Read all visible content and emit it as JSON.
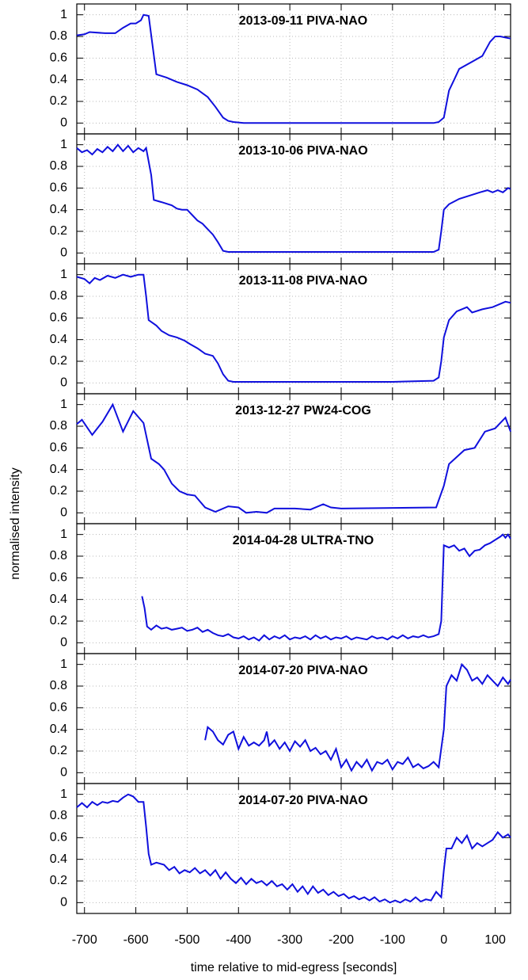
{
  "chart_data": [
    {
      "type": "line",
      "title": "2013-09-11 PIVA-NAO",
      "color": "#1010dd",
      "xlim": [
        -715,
        130
      ],
      "ylim": [
        -0.1,
        1.1
      ],
      "yticks": [
        0,
        0.2,
        0.4,
        0.6,
        0.8,
        1
      ],
      "xticks": [
        -700,
        -600,
        -500,
        -400,
        -300,
        -200,
        -100,
        0,
        100
      ],
      "grid": true,
      "x": [
        -715,
        -700,
        -690,
        -660,
        -640,
        -625,
        -610,
        -600,
        -590,
        -585,
        -575,
        -560,
        -540,
        -520,
        -500,
        -480,
        -460,
        -445,
        -430,
        -420,
        -410,
        -390,
        -300,
        -200,
        -100,
        -20,
        -10,
        0,
        10,
        20,
        30,
        60,
        75,
        90,
        100,
        110,
        120,
        130
      ],
      "values": [
        0.81,
        0.82,
        0.84,
        0.83,
        0.83,
        0.88,
        0.92,
        0.92,
        0.95,
        1.0,
        0.99,
        0.45,
        0.42,
        0.38,
        0.35,
        0.31,
        0.24,
        0.15,
        0.05,
        0.02,
        0.01,
        0,
        0,
        0,
        0,
        0,
        0.01,
        0.05,
        0.3,
        0.4,
        0.5,
        0.58,
        0.62,
        0.75,
        0.8,
        0.8,
        0.79,
        0.78
      ]
    },
    {
      "type": "line",
      "title": "2013-10-06 PIVA-NAO",
      "color": "#1010dd",
      "xlim": [
        -715,
        130
      ],
      "ylim": [
        -0.1,
        1.1
      ],
      "yticks": [
        0,
        0.2,
        0.4,
        0.6,
        0.8,
        1
      ],
      "xticks": [
        -700,
        -600,
        -500,
        -400,
        -300,
        -200,
        -100,
        0,
        100
      ],
      "grid": true,
      "x": [
        -715,
        -705,
        -695,
        -685,
        -675,
        -665,
        -655,
        -645,
        -635,
        -625,
        -615,
        -605,
        -595,
        -585,
        -580,
        -570,
        -565,
        -550,
        -530,
        -520,
        -510,
        -500,
        -490,
        -480,
        -470,
        -460,
        -450,
        -440,
        -430,
        -420,
        -400,
        -300,
        -200,
        -100,
        -20,
        -10,
        -5,
        0,
        10,
        30,
        50,
        70,
        85,
        95,
        105,
        115,
        125,
        130
      ],
      "values": [
        0.97,
        0.93,
        0.95,
        0.91,
        0.96,
        0.93,
        0.98,
        0.94,
        1.0,
        0.94,
        0.99,
        0.93,
        0.97,
        0.94,
        0.97,
        0.72,
        0.49,
        0.47,
        0.44,
        0.41,
        0.4,
        0.4,
        0.35,
        0.3,
        0.27,
        0.22,
        0.17,
        0.1,
        0.02,
        0.01,
        0.01,
        0.01,
        0.01,
        0.01,
        0.01,
        0.03,
        0.2,
        0.4,
        0.45,
        0.5,
        0.53,
        0.56,
        0.58,
        0.56,
        0.58,
        0.56,
        0.6,
        0.59
      ]
    },
    {
      "type": "line",
      "title": "2013-11-08 PIVA-NAO",
      "color": "#1010dd",
      "xlim": [
        -715,
        130
      ],
      "ylim": [
        -0.1,
        1.1
      ],
      "yticks": [
        0,
        0.2,
        0.4,
        0.6,
        0.8,
        1
      ],
      "xticks": [
        -700,
        -600,
        -500,
        -400,
        -300,
        -200,
        -100,
        0,
        100
      ],
      "grid": true,
      "x": [
        -715,
        -700,
        -690,
        -680,
        -670,
        -655,
        -640,
        -625,
        -610,
        -595,
        -585,
        -580,
        -575,
        -560,
        -550,
        -535,
        -520,
        -505,
        -495,
        -480,
        -465,
        -450,
        -440,
        -430,
        -420,
        -410,
        -300,
        -200,
        -100,
        -20,
        -10,
        -5,
        0,
        10,
        25,
        45,
        55,
        75,
        95,
        110,
        120,
        130
      ],
      "values": [
        0.98,
        0.96,
        0.92,
        0.97,
        0.95,
        0.99,
        0.97,
        1.0,
        0.98,
        1.0,
        1.0,
        0.8,
        0.58,
        0.53,
        0.48,
        0.44,
        0.42,
        0.39,
        0.36,
        0.32,
        0.27,
        0.25,
        0.18,
        0.08,
        0.02,
        0.01,
        0.01,
        0.01,
        0.01,
        0.02,
        0.05,
        0.2,
        0.42,
        0.58,
        0.66,
        0.7,
        0.65,
        0.68,
        0.7,
        0.73,
        0.75,
        0.74
      ]
    },
    {
      "type": "line",
      "title": "2013-12-27 PW24-COG",
      "ylabel": "normalised intensity",
      "color": "#1010dd",
      "xlim": [
        -715,
        130
      ],
      "ylim": [
        -0.1,
        1.1
      ],
      "yticks": [
        0,
        0.2,
        0.4,
        0.6,
        0.8,
        1
      ],
      "xticks": [
        -700,
        -600,
        -500,
        -400,
        -300,
        -200,
        -100,
        0,
        100
      ],
      "grid": true,
      "x": [
        -715,
        -705,
        -685,
        -665,
        -645,
        -625,
        -605,
        -585,
        -570,
        -555,
        -545,
        -530,
        -515,
        -500,
        -485,
        -465,
        -445,
        -420,
        -400,
        -385,
        -365,
        -345,
        -330,
        -290,
        -260,
        -235,
        -220,
        -200,
        -15,
        0,
        10,
        40,
        60,
        80,
        100,
        120,
        130
      ],
      "values": [
        0.82,
        0.86,
        0.72,
        0.84,
        1.0,
        0.75,
        0.94,
        0.83,
        0.5,
        0.45,
        0.4,
        0.27,
        0.2,
        0.17,
        0.16,
        0.05,
        0.01,
        0.06,
        0.05,
        0.0,
        0.01,
        0.0,
        0.04,
        0.04,
        0.03,
        0.08,
        0.05,
        0.04,
        0.05,
        0.25,
        0.45,
        0.58,
        0.6,
        0.75,
        0.78,
        0.88,
        0.75
      ]
    },
    {
      "type": "line",
      "title": "2014-04-28 ULTRA-TNO",
      "color": "#1010dd",
      "xlim": [
        -715,
        130
      ],
      "ylim": [
        -0.1,
        1.1
      ],
      "yticks": [
        0,
        0.2,
        0.4,
        0.6,
        0.8,
        1
      ],
      "xticks": [
        -700,
        -600,
        -500,
        -400,
        -300,
        -200,
        -100,
        0,
        100
      ],
      "grid": true,
      "x": [
        -588,
        -583,
        -578,
        -570,
        -560,
        -550,
        -540,
        -530,
        -520,
        -510,
        -500,
        -490,
        -480,
        -470,
        -460,
        -450,
        -440,
        -430,
        -420,
        -410,
        -400,
        -390,
        -380,
        -370,
        -360,
        -350,
        -340,
        -330,
        -320,
        -310,
        -300,
        -290,
        -280,
        -270,
        -260,
        -250,
        -240,
        -230,
        -220,
        -210,
        -200,
        -190,
        -180,
        -170,
        -160,
        -150,
        -140,
        -130,
        -120,
        -110,
        -100,
        -90,
        -80,
        -70,
        -60,
        -50,
        -40,
        -30,
        -20,
        -10,
        -5,
        0,
        10,
        20,
        30,
        40,
        50,
        60,
        70,
        80,
        90,
        100,
        110,
        115,
        120,
        125,
        130
      ],
      "values": [
        0.43,
        0.32,
        0.15,
        0.12,
        0.16,
        0.13,
        0.14,
        0.12,
        0.13,
        0.14,
        0.11,
        0.12,
        0.14,
        0.1,
        0.12,
        0.09,
        0.07,
        0.06,
        0.08,
        0.05,
        0.04,
        0.06,
        0.03,
        0.05,
        0.02,
        0.07,
        0.03,
        0.06,
        0.04,
        0.07,
        0.03,
        0.05,
        0.04,
        0.06,
        0.03,
        0.07,
        0.04,
        0.06,
        0.03,
        0.05,
        0.04,
        0.06,
        0.03,
        0.05,
        0.04,
        0.03,
        0.06,
        0.04,
        0.05,
        0.03,
        0.06,
        0.04,
        0.07,
        0.04,
        0.06,
        0.05,
        0.07,
        0.05,
        0.06,
        0.08,
        0.2,
        0.9,
        0.88,
        0.9,
        0.85,
        0.87,
        0.8,
        0.85,
        0.86,
        0.9,
        0.92,
        0.95,
        0.98,
        1.0,
        0.97,
        1.0,
        0.96
      ]
    },
    {
      "type": "line",
      "title": "2014-07-20 PIVA-NAO",
      "color": "#1010dd",
      "xlim": [
        -715,
        130
      ],
      "ylim": [
        -0.1,
        1.1
      ],
      "yticks": [
        0,
        0.2,
        0.4,
        0.6,
        0.8,
        1
      ],
      "xticks": [
        -700,
        -600,
        -500,
        -400,
        -300,
        -200,
        -100,
        0,
        100
      ],
      "grid": true,
      "x": [
        -465,
        -460,
        -450,
        -440,
        -430,
        -420,
        -410,
        -400,
        -390,
        -380,
        -370,
        -360,
        -350,
        -345,
        -340,
        -330,
        -320,
        -310,
        -300,
        -290,
        -280,
        -270,
        -260,
        -250,
        -240,
        -230,
        -220,
        -210,
        -200,
        -190,
        -180,
        -170,
        -160,
        -150,
        -140,
        -130,
        -120,
        -110,
        -100,
        -90,
        -80,
        -70,
        -60,
        -50,
        -40,
        -30,
        -20,
        -10,
        0,
        5,
        15,
        25,
        35,
        45,
        55,
        65,
        75,
        85,
        95,
        105,
        115,
        125,
        130
      ],
      "values": [
        0.3,
        0.42,
        0.38,
        0.3,
        0.26,
        0.35,
        0.38,
        0.22,
        0.33,
        0.25,
        0.28,
        0.25,
        0.3,
        0.38,
        0.25,
        0.3,
        0.22,
        0.28,
        0.2,
        0.29,
        0.24,
        0.3,
        0.2,
        0.23,
        0.17,
        0.2,
        0.12,
        0.22,
        0.05,
        0.12,
        0.02,
        0.1,
        0.05,
        0.12,
        0.02,
        0.1,
        0.08,
        0.12,
        0.03,
        0.1,
        0.08,
        0.14,
        0.05,
        0.08,
        0.04,
        0.06,
        0.1,
        0.05,
        0.4,
        0.8,
        0.9,
        0.85,
        1.0,
        0.95,
        0.85,
        0.88,
        0.82,
        0.9,
        0.85,
        0.8,
        0.88,
        0.82,
        0.86
      ]
    },
    {
      "type": "line",
      "title": "2014-07-20 PIVA-NAO",
      "xlabel": "time relative to mid-egress [seconds]",
      "color": "#1010dd",
      "xlim": [
        -715,
        130
      ],
      "ylim": [
        -0.1,
        1.1
      ],
      "yticks": [
        0,
        0.2,
        0.4,
        0.6,
        0.8,
        1
      ],
      "xticks": [
        -700,
        -600,
        -500,
        -400,
        -300,
        -200,
        -100,
        0,
        100
      ],
      "grid": true,
      "x": [
        -715,
        -705,
        -695,
        -685,
        -675,
        -665,
        -655,
        -645,
        -635,
        -625,
        -615,
        -605,
        -595,
        -585,
        -580,
        -575,
        -570,
        -560,
        -545,
        -535,
        -525,
        -515,
        -505,
        -495,
        -485,
        -475,
        -465,
        -455,
        -445,
        -435,
        -425,
        -415,
        -405,
        -395,
        -385,
        -375,
        -365,
        -355,
        -345,
        -335,
        -325,
        -315,
        -305,
        -295,
        -285,
        -275,
        -265,
        -255,
        -245,
        -235,
        -225,
        -215,
        -205,
        -195,
        -185,
        -175,
        -165,
        -155,
        -145,
        -135,
        -125,
        -115,
        -105,
        -95,
        -85,
        -75,
        -65,
        -55,
        -45,
        -35,
        -25,
        -15,
        -5,
        0,
        5,
        15,
        25,
        35,
        45,
        55,
        65,
        75,
        85,
        95,
        105,
        115,
        125,
        130
      ],
      "values": [
        0.88,
        0.92,
        0.88,
        0.93,
        0.9,
        0.93,
        0.92,
        0.94,
        0.93,
        0.97,
        1.0,
        0.98,
        0.93,
        0.93,
        0.7,
        0.45,
        0.35,
        0.37,
        0.35,
        0.3,
        0.33,
        0.27,
        0.3,
        0.28,
        0.32,
        0.27,
        0.3,
        0.25,
        0.3,
        0.22,
        0.28,
        0.22,
        0.18,
        0.23,
        0.17,
        0.22,
        0.18,
        0.2,
        0.16,
        0.2,
        0.15,
        0.17,
        0.12,
        0.17,
        0.1,
        0.15,
        0.08,
        0.15,
        0.09,
        0.12,
        0.07,
        0.1,
        0.06,
        0.08,
        0.04,
        0.06,
        0.03,
        0.05,
        0.02,
        0.05,
        0.01,
        0.03,
        0.0,
        0.02,
        0.0,
        0.03,
        0.01,
        0.05,
        0.01,
        0.03,
        0.02,
        0.1,
        0.05,
        0.3,
        0.5,
        0.5,
        0.6,
        0.55,
        0.62,
        0.5,
        0.55,
        0.52,
        0.55,
        0.58,
        0.65,
        0.6,
        0.63,
        0.6
      ]
    }
  ]
}
